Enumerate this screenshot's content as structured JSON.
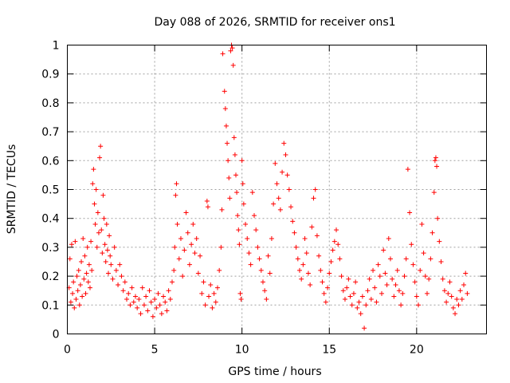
{
  "chart_data": {
    "type": "scatter",
    "title": "Day 088 of 2026, SRMTID for receiver ons1",
    "xlabel": "GPS time / hours",
    "ylabel": "SRMTID / TECUs",
    "xlim": [
      0,
      24
    ],
    "ylim": [
      0,
      1
    ],
    "xticks": [
      0,
      5,
      10,
      15,
      20
    ],
    "yticks": [
      0,
      0.1,
      0.2,
      0.3,
      0.4,
      0.5,
      0.6,
      0.7,
      0.8,
      0.9,
      1
    ],
    "xtick_labels": [
      "0",
      "5",
      "10",
      "15",
      "20"
    ],
    "ytick_labels": [
      "0",
      "0.1",
      "0.2",
      "0.3",
      "0.4",
      "0.5",
      "0.6",
      "0.7",
      "0.8",
      "0.9",
      "1"
    ],
    "grid": true,
    "marker": "plus",
    "color": "#ff0000",
    "series": [
      {
        "name": "SRMTID",
        "points": [
          [
            0.1,
            0.16
          ],
          [
            0.15,
            0.26
          ],
          [
            0.2,
            0.11
          ],
          [
            0.25,
            0.31
          ],
          [
            0.3,
            0.14
          ],
          [
            0.35,
            0.18
          ],
          [
            0.4,
            0.09
          ],
          [
            0.45,
            0.32
          ],
          [
            0.5,
            0.12
          ],
          [
            0.55,
            0.2
          ],
          [
            0.6,
            0.15
          ],
          [
            0.65,
            0.22
          ],
          [
            0.7,
            0.1
          ],
          [
            0.75,
            0.17
          ],
          [
            0.8,
            0.25
          ],
          [
            0.85,
            0.13
          ],
          [
            0.9,
            0.33
          ],
          [
            0.95,
            0.19
          ],
          [
            1.0,
            0.27
          ],
          [
            1.05,
            0.14
          ],
          [
            1.1,
            0.21
          ],
          [
            1.15,
            0.3
          ],
          [
            1.2,
            0.18
          ],
          [
            1.25,
            0.24
          ],
          [
            1.3,
            0.16
          ],
          [
            1.35,
            0.32
          ],
          [
            1.4,
            0.22
          ],
          [
            1.45,
            0.52
          ],
          [
            1.5,
            0.57
          ],
          [
            1.55,
            0.45
          ],
          [
            1.6,
            0.38
          ],
          [
            1.65,
            0.5
          ],
          [
            1.7,
            0.3
          ],
          [
            1.75,
            0.42
          ],
          [
            1.8,
            0.35
          ],
          [
            1.85,
            0.61
          ],
          [
            1.9,
            0.65
          ],
          [
            1.95,
            0.36
          ],
          [
            2.0,
            0.28
          ],
          [
            2.05,
            0.48
          ],
          [
            2.1,
            0.4
          ],
          [
            2.15,
            0.31
          ],
          [
            2.2,
            0.25
          ],
          [
            2.25,
            0.38
          ],
          [
            2.3,
            0.29
          ],
          [
            2.35,
            0.21
          ],
          [
            2.4,
            0.34
          ],
          [
            2.45,
            0.27
          ],
          [
            2.5,
            0.24
          ],
          [
            2.6,
            0.19
          ],
          [
            2.7,
            0.3
          ],
          [
            2.8,
            0.22
          ],
          [
            2.9,
            0.17
          ],
          [
            3.0,
            0.24
          ],
          [
            3.1,
            0.2
          ],
          [
            3.2,
            0.15
          ],
          [
            3.3,
            0.18
          ],
          [
            3.4,
            0.12
          ],
          [
            3.5,
            0.14
          ],
          [
            3.6,
            0.1
          ],
          [
            3.7,
            0.16
          ],
          [
            3.8,
            0.11
          ],
          [
            3.9,
            0.13
          ],
          [
            4.0,
            0.09
          ],
          [
            4.1,
            0.12
          ],
          [
            4.2,
            0.07
          ],
          [
            4.3,
            0.16
          ],
          [
            4.4,
            0.1
          ],
          [
            4.5,
            0.13
          ],
          [
            4.6,
            0.08
          ],
          [
            4.7,
            0.15
          ],
          [
            4.8,
            0.11
          ],
          [
            4.9,
            0.06
          ],
          [
            5.0,
            0.12
          ],
          [
            5.1,
            0.09
          ],
          [
            5.2,
            0.14
          ],
          [
            5.3,
            0.1
          ],
          [
            5.4,
            0.07
          ],
          [
            5.5,
            0.13
          ],
          [
            5.6,
            0.11
          ],
          [
            5.7,
            0.08
          ],
          [
            5.8,
            0.15
          ],
          [
            5.9,
            0.12
          ],
          [
            6.0,
            0.18
          ],
          [
            6.1,
            0.22
          ],
          [
            6.15,
            0.3
          ],
          [
            6.2,
            0.48
          ],
          [
            6.25,
            0.52
          ],
          [
            6.3,
            0.38
          ],
          [
            6.4,
            0.26
          ],
          [
            6.5,
            0.33
          ],
          [
            6.6,
            0.2
          ],
          [
            6.7,
            0.29
          ],
          [
            6.8,
            0.42
          ],
          [
            6.9,
            0.35
          ],
          [
            7.0,
            0.24
          ],
          [
            7.1,
            0.31
          ],
          [
            7.2,
            0.38
          ],
          [
            7.3,
            0.28
          ],
          [
            7.4,
            0.33
          ],
          [
            7.5,
            0.21
          ],
          [
            7.6,
            0.27
          ],
          [
            7.7,
            0.14
          ],
          [
            7.8,
            0.18
          ],
          [
            7.9,
            0.1
          ],
          [
            8.0,
            0.46
          ],
          [
            8.05,
            0.44
          ],
          [
            8.1,
            0.13
          ],
          [
            8.2,
            0.17
          ],
          [
            8.3,
            0.09
          ],
          [
            8.4,
            0.14
          ],
          [
            8.5,
            0.11
          ],
          [
            8.6,
            0.16
          ],
          [
            8.7,
            0.22
          ],
          [
            8.8,
            0.3
          ],
          [
            8.85,
            0.43
          ],
          [
            8.9,
            0.97
          ],
          [
            9.0,
            0.84
          ],
          [
            9.05,
            0.78
          ],
          [
            9.1,
            0.72
          ],
          [
            9.15,
            0.66
          ],
          [
            9.2,
            0.6
          ],
          [
            9.25,
            0.54
          ],
          [
            9.3,
            0.47
          ],
          [
            9.35,
            0.98
          ],
          [
            9.4,
            1.0
          ],
          [
            9.45,
            0.99
          ],
          [
            9.5,
            0.93
          ],
          [
            9.55,
            0.68
          ],
          [
            9.6,
            0.62
          ],
          [
            9.65,
            0.55
          ],
          [
            9.7,
            0.49
          ],
          [
            9.75,
            0.41
          ],
          [
            9.8,
            0.36
          ],
          [
            9.85,
            0.31
          ],
          [
            9.9,
            0.14
          ],
          [
            9.95,
            0.12
          ],
          [
            10.0,
            0.6
          ],
          [
            10.05,
            0.52
          ],
          [
            10.1,
            0.45
          ],
          [
            10.2,
            0.38
          ],
          [
            10.3,
            0.33
          ],
          [
            10.4,
            0.28
          ],
          [
            10.5,
            0.24
          ],
          [
            10.6,
            0.49
          ],
          [
            10.7,
            0.41
          ],
          [
            10.8,
            0.36
          ],
          [
            10.9,
            0.3
          ],
          [
            11.0,
            0.26
          ],
          [
            11.1,
            0.22
          ],
          [
            11.2,
            0.18
          ],
          [
            11.3,
            0.15
          ],
          [
            11.4,
            0.12
          ],
          [
            11.5,
            0.27
          ],
          [
            11.6,
            0.21
          ],
          [
            11.7,
            0.33
          ],
          [
            11.8,
            0.45
          ],
          [
            11.9,
            0.59
          ],
          [
            12.0,
            0.52
          ],
          [
            12.1,
            0.47
          ],
          [
            12.2,
            0.43
          ],
          [
            12.3,
            0.56
          ],
          [
            12.4,
            0.66
          ],
          [
            12.5,
            0.62
          ],
          [
            12.6,
            0.55
          ],
          [
            12.7,
            0.5
          ],
          [
            12.8,
            0.44
          ],
          [
            12.9,
            0.39
          ],
          [
            13.0,
            0.35
          ],
          [
            13.1,
            0.3
          ],
          [
            13.2,
            0.26
          ],
          [
            13.3,
            0.22
          ],
          [
            13.4,
            0.19
          ],
          [
            13.5,
            0.24
          ],
          [
            13.6,
            0.33
          ],
          [
            13.7,
            0.28
          ],
          [
            13.8,
            0.21
          ],
          [
            13.9,
            0.17
          ],
          [
            14.0,
            0.37
          ],
          [
            14.1,
            0.47
          ],
          [
            14.2,
            0.5
          ],
          [
            14.3,
            0.34
          ],
          [
            14.4,
            0.27
          ],
          [
            14.5,
            0.22
          ],
          [
            14.6,
            0.18
          ],
          [
            14.7,
            0.14
          ],
          [
            14.8,
            0.11
          ],
          [
            14.9,
            0.16
          ],
          [
            15.0,
            0.21
          ],
          [
            15.1,
            0.25
          ],
          [
            15.2,
            0.29
          ],
          [
            15.3,
            0.32
          ],
          [
            15.4,
            0.36
          ],
          [
            15.5,
            0.31
          ],
          [
            15.6,
            0.26
          ],
          [
            15.7,
            0.2
          ],
          [
            15.8,
            0.15
          ],
          [
            15.9,
            0.12
          ],
          [
            16.0,
            0.16
          ],
          [
            16.1,
            0.19
          ],
          [
            16.2,
            0.13
          ],
          [
            16.3,
            0.1
          ],
          [
            16.4,
            0.14
          ],
          [
            16.5,
            0.18
          ],
          [
            16.6,
            0.09
          ],
          [
            16.7,
            0.11
          ],
          [
            16.8,
            0.07
          ],
          [
            16.9,
            0.13
          ],
          [
            17.0,
            0.02
          ],
          [
            17.1,
            0.1
          ],
          [
            17.2,
            0.15
          ],
          [
            17.3,
            0.19
          ],
          [
            17.4,
            0.12
          ],
          [
            17.5,
            0.22
          ],
          [
            17.6,
            0.16
          ],
          [
            17.7,
            0.11
          ],
          [
            17.8,
            0.24
          ],
          [
            17.9,
            0.2
          ],
          [
            18.0,
            0.14
          ],
          [
            18.1,
            0.29
          ],
          [
            18.2,
            0.21
          ],
          [
            18.3,
            0.17
          ],
          [
            18.4,
            0.33
          ],
          [
            18.5,
            0.26
          ],
          [
            18.6,
            0.19
          ],
          [
            18.7,
            0.13
          ],
          [
            18.8,
            0.17
          ],
          [
            18.9,
            0.22
          ],
          [
            19.0,
            0.15
          ],
          [
            19.1,
            0.1
          ],
          [
            19.2,
            0.14
          ],
          [
            19.3,
            0.2
          ],
          [
            19.4,
            0.26
          ],
          [
            19.5,
            0.57
          ],
          [
            19.6,
            0.42
          ],
          [
            19.7,
            0.31
          ],
          [
            19.8,
            0.24
          ],
          [
            19.9,
            0.18
          ],
          [
            20.0,
            0.13
          ],
          [
            20.1,
            0.1
          ],
          [
            20.2,
            0.22
          ],
          [
            20.3,
            0.38
          ],
          [
            20.4,
            0.28
          ],
          [
            20.5,
            0.2
          ],
          [
            20.6,
            0.14
          ],
          [
            20.7,
            0.19
          ],
          [
            20.8,
            0.26
          ],
          [
            20.9,
            0.35
          ],
          [
            21.0,
            0.49
          ],
          [
            21.05,
            0.6
          ],
          [
            21.1,
            0.61
          ],
          [
            21.15,
            0.58
          ],
          [
            21.2,
            0.4
          ],
          [
            21.3,
            0.32
          ],
          [
            21.4,
            0.25
          ],
          [
            21.5,
            0.19
          ],
          [
            21.6,
            0.15
          ],
          [
            21.7,
            0.11
          ],
          [
            21.8,
            0.14
          ],
          [
            21.9,
            0.18
          ],
          [
            22.0,
            0.13
          ],
          [
            22.1,
            0.09
          ],
          [
            22.2,
            0.07
          ],
          [
            22.3,
            0.12
          ],
          [
            22.4,
            0.1
          ],
          [
            22.5,
            0.15
          ],
          [
            22.6,
            0.12
          ],
          [
            22.7,
            0.17
          ],
          [
            22.8,
            0.21
          ],
          [
            22.9,
            0.14
          ]
        ]
      }
    ]
  }
}
